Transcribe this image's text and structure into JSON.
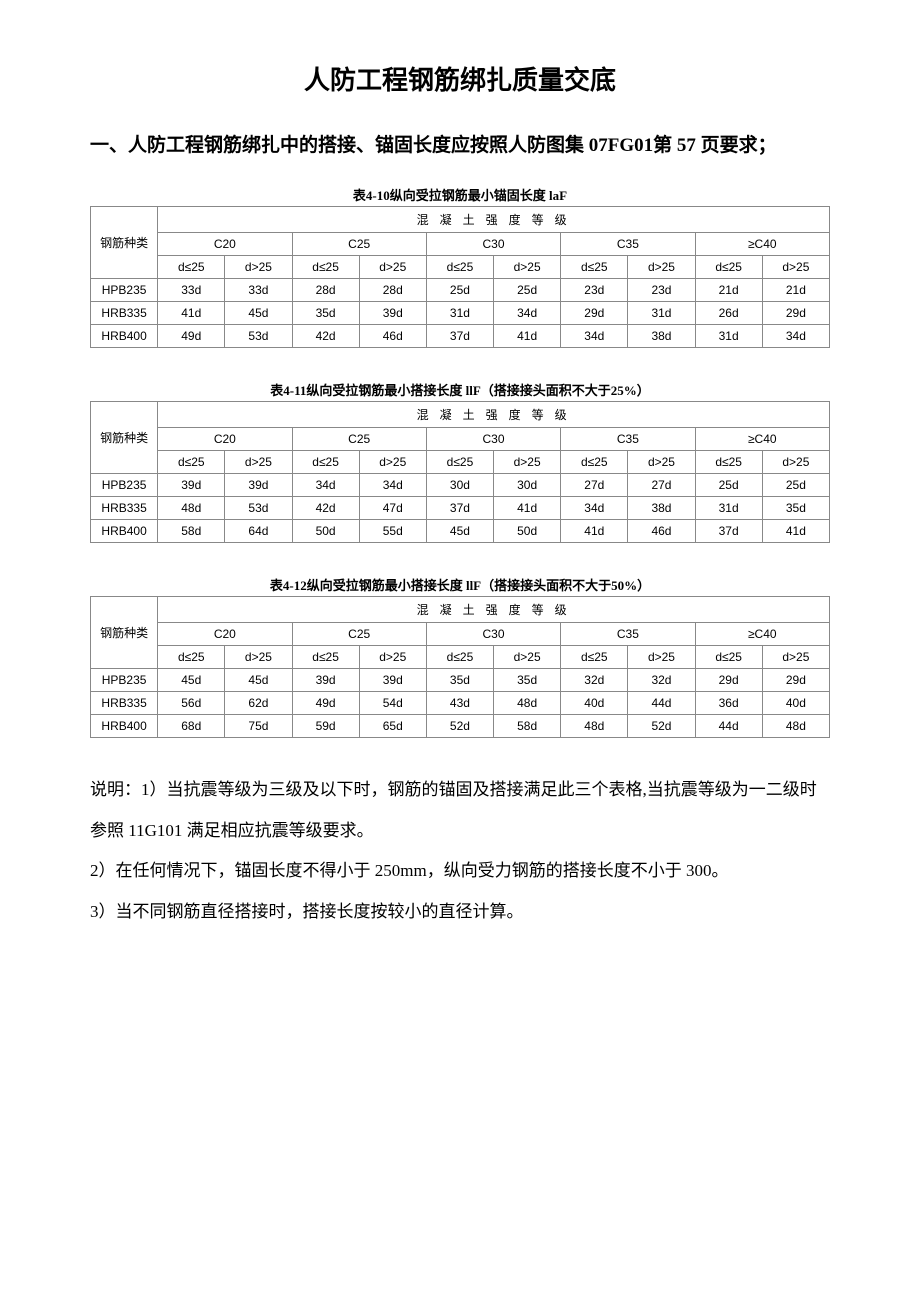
{
  "title": "人防工程钢筋绑扎质量交底",
  "section1": "一、人防工程钢筋绑扎中的搭接、锚固长度应按照人防图集 07FG01第 57 页要求；",
  "table_common": {
    "row_header_label": "钢筋种类",
    "top_header": "混 凝 土 强 度 等 级",
    "grades": [
      "C20",
      "C25",
      "C30",
      "C35",
      "≥C40"
    ],
    "sub_le": "d≤25",
    "sub_gt": "d>25",
    "rebar_types": [
      "HPB235",
      "HRB335",
      "HRB400"
    ]
  },
  "table1": {
    "caption": "表4-10纵向受拉钢筋最小锚固长度  laF",
    "rows": [
      [
        "33d",
        "33d",
        "28d",
        "28d",
        "25d",
        "25d",
        "23d",
        "23d",
        "21d",
        "21d"
      ],
      [
        "41d",
        "45d",
        "35d",
        "39d",
        "31d",
        "34d",
        "29d",
        "31d",
        "26d",
        "29d"
      ],
      [
        "49d",
        "53d",
        "42d",
        "46d",
        "37d",
        "41d",
        "34d",
        "38d",
        "31d",
        "34d"
      ]
    ]
  },
  "table2": {
    "caption": "表4-11纵向受拉钢筋最小搭接长度  llF（搭接接头面积不大于25%）",
    "rows": [
      [
        "39d",
        "39d",
        "34d",
        "34d",
        "30d",
        "30d",
        "27d",
        "27d",
        "25d",
        "25d"
      ],
      [
        "48d",
        "53d",
        "42d",
        "47d",
        "37d",
        "41d",
        "34d",
        "38d",
        "31d",
        "35d"
      ],
      [
        "58d",
        "64d",
        "50d",
        "55d",
        "45d",
        "50d",
        "41d",
        "46d",
        "37d",
        "41d"
      ]
    ]
  },
  "table3": {
    "caption": "表4-12纵向受拉钢筋最小搭接长度  llF（搭接接头面积不大于50%）",
    "rows": [
      [
        "45d",
        "45d",
        "39d",
        "39d",
        "35d",
        "35d",
        "32d",
        "32d",
        "29d",
        "29d"
      ],
      [
        "56d",
        "62d",
        "49d",
        "54d",
        "43d",
        "48d",
        "40d",
        "44d",
        "36d",
        "40d"
      ],
      [
        "68d",
        "75d",
        "59d",
        "65d",
        "52d",
        "58d",
        "48d",
        "52d",
        "44d",
        "48d"
      ]
    ]
  },
  "notes": {
    "n1": "说明：1）当抗震等级为三级及以下时，钢筋的锚固及搭接满足此三个表格,当抗震等级为一二级时参照 11G101 满足相应抗震等级要求。",
    "n2": "2）在任何情况下，锚固长度不得小于 250mm，纵向受力钢筋的搭接长度不小于 300。",
    "n3": "3）当不同钢筋直径搭接时，搭接长度按较小的直径计算。"
  }
}
